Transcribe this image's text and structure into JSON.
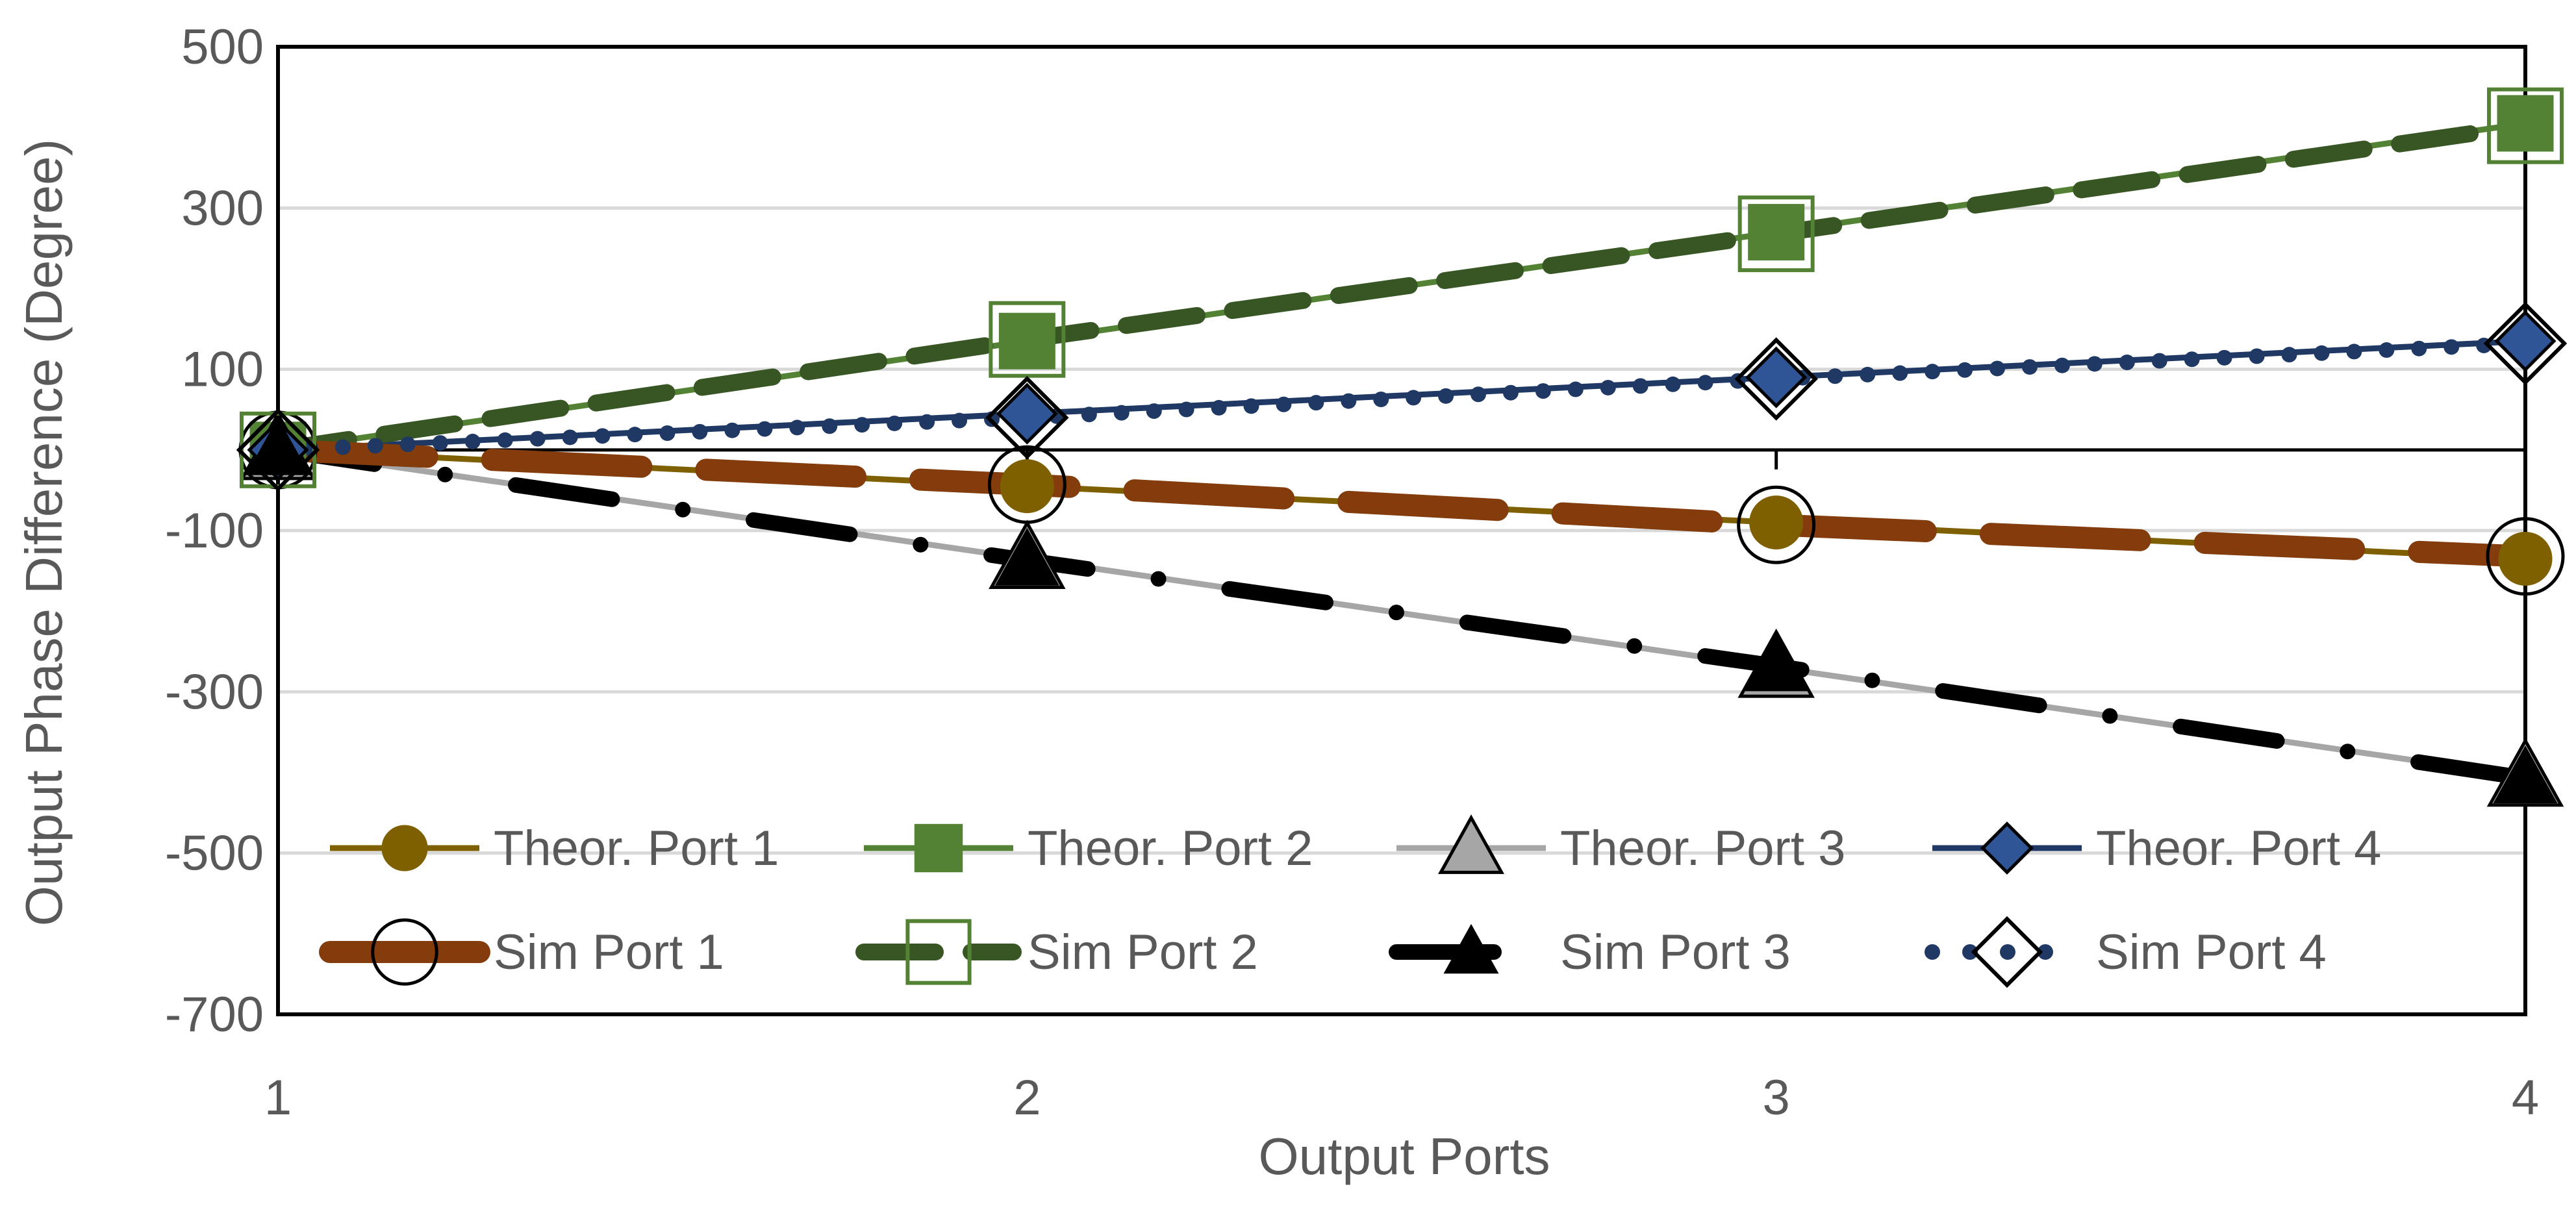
{
  "chart_data": {
    "type": "line",
    "title": "",
    "xlabel": "Output Ports",
    "ylabel": "Output Phase Difference (Degree)",
    "x": [
      1,
      2,
      3,
      4
    ],
    "x_ticks": [
      "1",
      "2",
      "3",
      "4"
    ],
    "xlim": [
      1,
      4
    ],
    "ylim": [
      -700,
      500
    ],
    "y_ticks": [
      "500",
      "300",
      "100",
      "-100",
      "-300",
      "-500",
      "-700"
    ],
    "grid": "horizontal",
    "legend_position": "bottom-inside",
    "series": [
      {
        "name": "Theor. Port 1",
        "values": [
          0,
          -45,
          -90,
          -135
        ],
        "color": "#7f6000",
        "marker": "circle",
        "line": "solid"
      },
      {
        "name": "Theor. Port 2",
        "values": [
          0,
          135,
          270,
          405
        ],
        "color": "#548235",
        "marker": "square",
        "line": "solid"
      },
      {
        "name": "Theor. Port 3",
        "values": [
          0,
          -135,
          -270,
          -405
        ],
        "color": "#a6a6a6",
        "marker": "triangle",
        "line": "solid"
      },
      {
        "name": "Theor. Port 4",
        "values": [
          0,
          45,
          90,
          135
        ],
        "color": "#1f3864",
        "marker": "diamond",
        "line": "solid"
      },
      {
        "name": "Sim Port 1",
        "values": [
          0,
          -43,
          -93,
          -132
        ],
        "color": "#843c0c",
        "marker": "circle-open",
        "line": "dash-thick"
      },
      {
        "name": "Sim Port 2",
        "values": [
          0,
          137,
          268,
          402
        ],
        "color": "#375623",
        "marker": "square-open",
        "line": "dash"
      },
      {
        "name": "Sim Port 3",
        "values": [
          0,
          -137,
          -268,
          -407
        ],
        "color": "#000000",
        "marker": "triangle-dark",
        "line": "dash-dot"
      },
      {
        "name": "Sim Port 4",
        "values": [
          0,
          40,
          88,
          132
        ],
        "color": "#1f3864",
        "marker": "diamond-open",
        "line": "dot"
      }
    ]
  }
}
